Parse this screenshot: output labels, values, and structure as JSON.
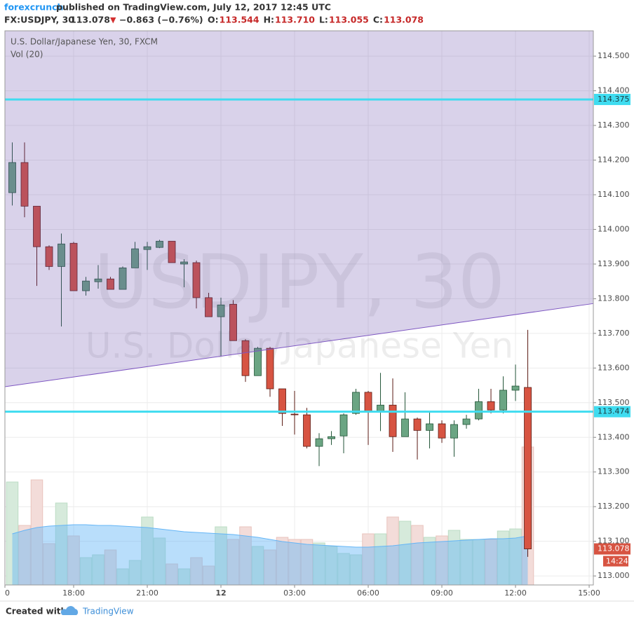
{
  "header": {
    "author": "forexcrunch",
    "published": "published on TradingView.com, July 12, 2017 12:45 UTC",
    "symbol": "FX:USDJPY, 30",
    "price": "113.078",
    "arrow": "▼",
    "change": "−0.863 (−0.76%)",
    "ohlc": [
      {
        "label": "O:",
        "value": "113.544"
      },
      {
        "label": "H:",
        "value": "113.710"
      },
      {
        "label": "L:",
        "value": "113.055"
      },
      {
        "label": "C:",
        "value": "113.078"
      }
    ]
  },
  "chart_data": {
    "type": "candlestick",
    "legend": "U.S. Dollar/Japanese Yen, 30, FXCM",
    "volume_legend": "Vol (20)",
    "watermark": "USDJPY, 30",
    "watermark_subtitle": "U.S. Dollar/Japanese Yen",
    "up_color": "#6ba583",
    "down_color": "#d75442",
    "volume_up_color": "#d6eadb",
    "volume_down_color": "#f3dcd9",
    "ma_color": "#64b5f6",
    "overlay_color": "#684caa",
    "trendline_color": "#7e57c2",
    "hline_color": "#3fdcf0",
    "grid": true,
    "x": [
      15.5,
      16,
      16.5,
      17,
      17.5,
      18,
      18.5,
      19,
      19.5,
      20,
      20.5,
      21,
      21.5,
      22,
      22.5,
      23,
      23.5,
      24,
      24.5,
      25,
      25.5,
      26,
      26.5,
      27,
      27.5,
      28,
      28.5,
      29,
      29.5,
      30,
      30.5,
      31,
      31.5,
      32,
      32.5,
      33,
      33.5,
      34,
      34.5,
      35,
      35.5,
      36,
      36.5
    ],
    "open": [
      114.106,
      114.193,
      114.067,
      113.95,
      113.893,
      113.96,
      113.823,
      113.849,
      113.857,
      113.827,
      113.889,
      113.942,
      113.948,
      113.966,
      113.9,
      113.904,
      113.803,
      113.748,
      113.784,
      113.679,
      113.578,
      113.657,
      113.54,
      113.467,
      113.465,
      113.374,
      113.396,
      113.404,
      113.469,
      113.53,
      113.473,
      113.493,
      113.402,
      113.453,
      113.42,
      113.439,
      113.398,
      113.437,
      113.453,
      113.503,
      113.479,
      113.536,
      113.544
    ],
    "high": [
      114.251,
      114.251,
      114.067,
      113.954,
      113.988,
      113.964,
      113.863,
      113.897,
      113.863,
      113.893,
      113.964,
      113.964,
      113.97,
      113.966,
      113.914,
      113.91,
      113.817,
      113.803,
      113.796,
      113.683,
      113.661,
      113.661,
      113.54,
      113.534,
      113.485,
      113.412,
      113.418,
      113.469,
      113.54,
      113.534,
      113.586,
      113.57,
      113.53,
      113.457,
      113.473,
      113.449,
      113.449,
      113.465,
      113.54,
      113.54,
      113.576,
      113.61,
      113.71
    ],
    "low": [
      114.069,
      114.035,
      113.837,
      113.883,
      113.72,
      113.823,
      113.809,
      113.829,
      113.827,
      113.827,
      113.889,
      113.883,
      113.946,
      113.904,
      113.833,
      113.772,
      113.748,
      113.635,
      113.679,
      113.56,
      113.578,
      113.517,
      113.433,
      113.408,
      113.368,
      113.317,
      113.378,
      113.354,
      113.465,
      113.378,
      113.418,
      113.358,
      113.402,
      113.336,
      113.368,
      113.384,
      113.344,
      113.425,
      113.449,
      113.469,
      113.469,
      113.505,
      113.055
    ],
    "close": [
      114.193,
      114.067,
      113.95,
      113.893,
      113.958,
      113.823,
      113.851,
      113.857,
      113.827,
      113.889,
      113.944,
      113.95,
      113.966,
      113.904,
      113.906,
      113.803,
      113.748,
      113.782,
      113.679,
      113.578,
      113.657,
      113.54,
      113.469,
      113.465,
      113.374,
      113.396,
      113.402,
      113.465,
      113.53,
      113.473,
      113.493,
      113.402,
      113.453,
      113.42,
      113.439,
      113.398,
      113.437,
      113.453,
      113.503,
      113.479,
      113.536,
      113.548,
      113.078
    ],
    "volume": [
      147,
      85,
      150,
      59,
      117,
      70,
      39,
      43,
      50,
      23,
      35,
      97,
      67,
      30,
      23,
      39,
      27,
      83,
      65,
      83,
      55,
      50,
      68,
      65,
      65,
      60,
      55,
      45,
      43,
      73,
      73,
      97,
      91,
      85,
      68,
      70,
      78,
      65,
      65,
      65,
      77,
      80,
      197
    ],
    "volume_ma": [
      73,
      78,
      82,
      84,
      85,
      86,
      86,
      85,
      85,
      84,
      83,
      82,
      80,
      78,
      76,
      75,
      74,
      73,
      72,
      70,
      68,
      65,
      62,
      60,
      58,
      57,
      56,
      55,
      54,
      54,
      55,
      56,
      58,
      60,
      61,
      62,
      63,
      64,
      65,
      66,
      66,
      67,
      70
    ],
    "xlim": [
      15.2,
      39.17
    ],
    "xticks": [
      {
        "value": 15.2,
        "label": "0"
      },
      {
        "value": 18,
        "label": "18:00"
      },
      {
        "value": 21,
        "label": "21:00"
      },
      {
        "value": 24,
        "label": "12"
      },
      {
        "value": 27,
        "label": "03:00"
      },
      {
        "value": 30,
        "label": "06:00"
      },
      {
        "value": 33,
        "label": "09:00"
      },
      {
        "value": 36,
        "label": "12:00"
      },
      {
        "value": 39,
        "label": "15:00"
      }
    ],
    "ylim": [
      112.974,
      114.573
    ],
    "yticks": [
      {
        "value": 113.0,
        "label": "113.000"
      },
      {
        "value": 113.1,
        "label": "113.100"
      },
      {
        "value": 113.2,
        "label": "113.200"
      },
      {
        "value": 113.3,
        "label": "113.300"
      },
      {
        "value": 113.4,
        "label": "113.400"
      },
      {
        "value": 113.5,
        "label": "113.500"
      },
      {
        "value": 113.6,
        "label": "113.600"
      },
      {
        "value": 113.7,
        "label": "113.700"
      },
      {
        "value": 113.8,
        "label": "113.800"
      },
      {
        "value": 113.9,
        "label": "113.900"
      },
      {
        "value": 114.0,
        "label": "114.000"
      },
      {
        "value": 114.1,
        "label": "114.100"
      },
      {
        "value": 114.2,
        "label": "114.200"
      },
      {
        "value": 114.3,
        "label": "114.300"
      },
      {
        "value": 114.4,
        "label": "114.400"
      },
      {
        "value": 114.5,
        "label": "114.500"
      }
    ],
    "trendline": {
      "x": [
        15.2,
        39.17
      ],
      "y": [
        113.546,
        113.786
      ]
    },
    "hlines": [
      114.375,
      113.474
    ],
    "countdown": "14:24"
  },
  "footer": {
    "created": "Created with",
    "brand": "TradingView"
  }
}
